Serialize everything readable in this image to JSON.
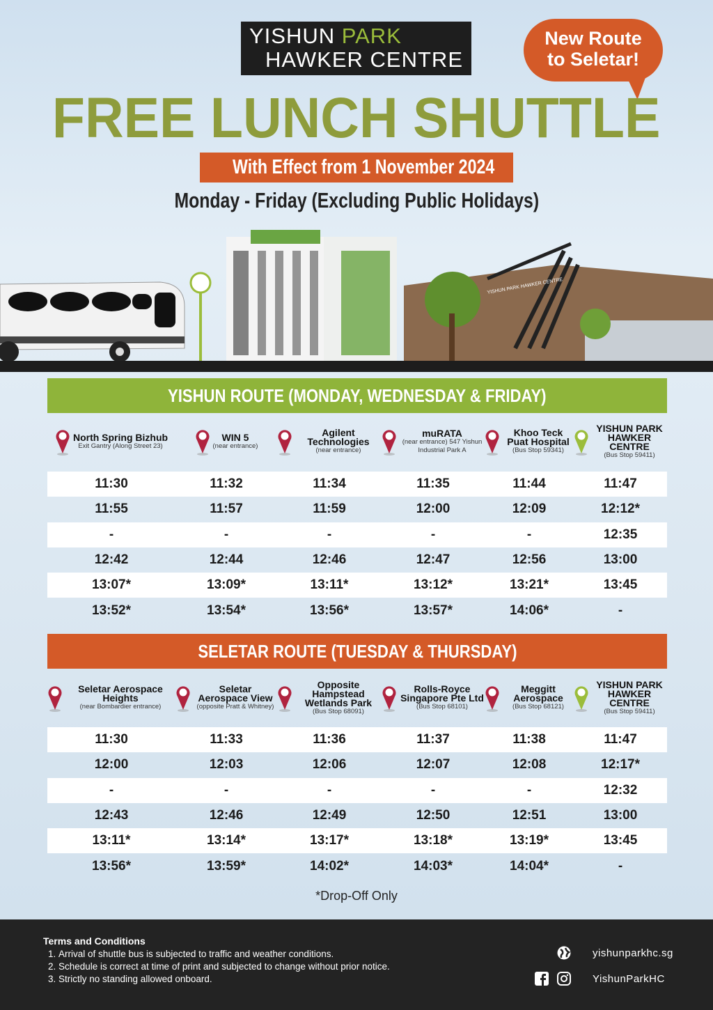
{
  "header": {
    "logo_line1a": "YISHUN ",
    "logo_line1b": "PARK",
    "logo_line2": "HAWKER CENTRE",
    "badge_line1": "New Route",
    "badge_line2": "to Seletar!",
    "title": "FREE LUNCH SHUTTLE",
    "effective": "With Effect from 1 November 2024",
    "days": "Monday - Friday (Excluding Public Holidays)"
  },
  "colors": {
    "green": "#8fb43a",
    "orange": "#d45a28",
    "pin_red": "#b0233f",
    "pin_green": "#9bbd3b",
    "dark": "#232323"
  },
  "yishun_route": {
    "title": "YISHUN ROUTE (MONDAY, WEDNESDAY & FRIDAY)",
    "stops": [
      {
        "name": "North Spring Bizhub",
        "sub": "Exit Gantry (Along Street 23)"
      },
      {
        "name": "WIN 5",
        "sub": "(near entrance)"
      },
      {
        "name": "Agilent Technologies",
        "sub": "(near entrance)"
      },
      {
        "name": "muRATA",
        "sub": "(near entrance) 547 Yishun Industrial Park A"
      },
      {
        "name": "Khoo Teck Puat Hospital",
        "sub": "(Bus Stop 59341)"
      },
      {
        "name": "YISHUN PARK HAWKER CENTRE",
        "sub": "(Bus Stop 59411)"
      }
    ],
    "rows": [
      [
        "11:30",
        "11:32",
        "11:34",
        "11:35",
        "11:44",
        "11:47"
      ],
      [
        "11:55",
        "11:57",
        "11:59",
        "12:00",
        "12:09",
        "12:12*"
      ],
      [
        "-",
        "-",
        "-",
        "-",
        "-",
        "12:35"
      ],
      [
        "12:42",
        "12:44",
        "12:46",
        "12:47",
        "12:56",
        "13:00"
      ],
      [
        "13:07*",
        "13:09*",
        "13:11*",
        "13:12*",
        "13:21*",
        "13:45"
      ],
      [
        "13:52*",
        "13:54*",
        "13:56*",
        "13:57*",
        "14:06*",
        "-"
      ]
    ]
  },
  "seletar_route": {
    "title": "SELETAR ROUTE (TUESDAY & THURSDAY)",
    "stops": [
      {
        "name": "Seletar Aerospace Heights",
        "sub": "(near Bombardier entrance)"
      },
      {
        "name": "Seletar Aerospace View",
        "sub": "(opposite Pratt & Whitney)"
      },
      {
        "name": "Opposite Hampstead Wetlands Park",
        "sub": "(Bus Stop 68091)"
      },
      {
        "name": "Rolls-Royce Singapore Pte Ltd",
        "sub": "(Bus Stop 68101)"
      },
      {
        "name": "Meggitt Aerospace",
        "sub": "(Bus Stop 68121)"
      },
      {
        "name": "YISHUN PARK HAWKER CENTRE",
        "sub": "(Bus Stop 59411)"
      }
    ],
    "rows": [
      [
        "11:30",
        "11:33",
        "11:36",
        "11:37",
        "11:38",
        "11:47"
      ],
      [
        "12:00",
        "12:03",
        "12:06",
        "12:07",
        "12:08",
        "12:17*"
      ],
      [
        "-",
        "-",
        "-",
        "-",
        "-",
        "12:32"
      ],
      [
        "12:43",
        "12:46",
        "12:49",
        "12:50",
        "12:51",
        "13:00"
      ],
      [
        "13:11*",
        "13:14*",
        "13:17*",
        "13:18*",
        "13:19*",
        "13:45"
      ],
      [
        "13:56*",
        "13:59*",
        "14:02*",
        "14:03*",
        "14:04*",
        "-"
      ]
    ]
  },
  "note": "*Drop-Off Only",
  "footer": {
    "terms_title": "Terms and Conditions",
    "terms": [
      "Arrival of shuttle bus is subjected to traffic and weather conditions.",
      "Schedule is correct at time of print and subjected to change without prior notice.",
      "Strictly no standing allowed onboard."
    ],
    "website": "yishunparkhc.sg",
    "social": "YishunParkHC",
    "building_sign": "YISHUN PARK HAWKER CENTRE"
  }
}
